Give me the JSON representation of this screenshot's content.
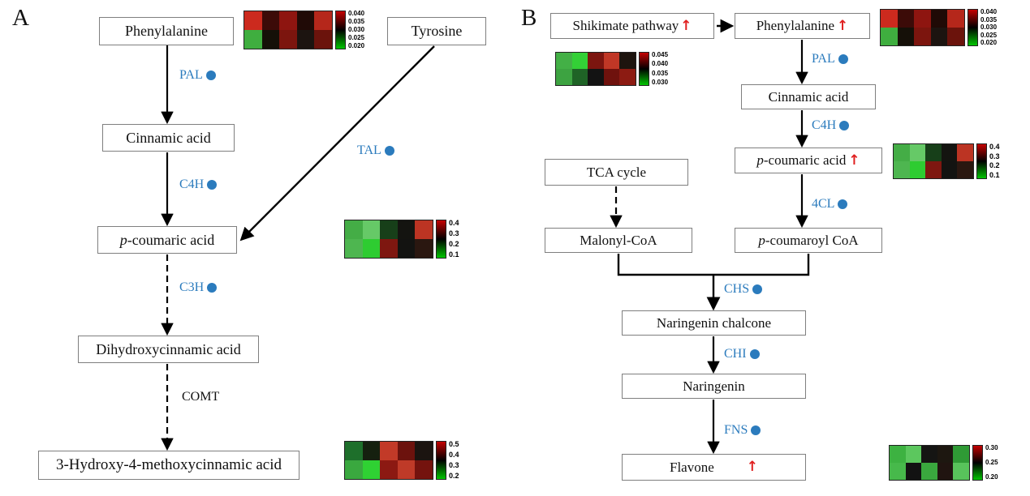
{
  "glyphs": {
    "up_arrow": "↑"
  },
  "colors": {
    "enzyme_blue": "#2b7bbd",
    "up_red": "#e01f1f",
    "heat_red": "#c40000",
    "heat_green": "#00c400"
  },
  "panelA": {
    "label": "A",
    "nodes": {
      "phenylalanine": "Phenylalanine",
      "tyrosine": "Tyrosine",
      "cinnamic_acid": "Cinnamic acid",
      "p_coumaric_italic": "p",
      "p_coumaric_rest": "-coumaric acid",
      "dihydroxycinnamic_acid": "Dihydroxycinnamic acid",
      "hydroxy_methoxycinnamic_acid": "3-Hydroxy-4-methoxycinnamic acid"
    },
    "enzymes": {
      "pal": "PAL",
      "c4h": "C4H",
      "tal": "TAL",
      "c3h": "C3H",
      "comt": "COMT"
    }
  },
  "panelB": {
    "label": "B",
    "nodes": {
      "shikimate_pathway": "Shikimate pathway",
      "phenylalanine": "Phenylalanine",
      "cinnamic_acid": "Cinnamic acid",
      "p_coumaric_italic": "p",
      "p_coumaric_rest": "-coumaric acid",
      "tca_cycle": "TCA cycle",
      "malonyl_coa": "Malonyl-CoA",
      "p_coumaroyl_italic": "p",
      "p_coumaroyl_rest": "-coumaroyl CoA",
      "naringenin_chalcone": "Naringenin chalcone",
      "naringenin": "Naringenin",
      "flavone": "Flavone"
    },
    "enzymes": {
      "pal": "PAL",
      "c4h": "C4H",
      "fourcl": "4CL",
      "chs": "CHS",
      "chi": "CHI",
      "fns": "FNS"
    }
  },
  "heatmaps": {
    "A_phenylalanine": {
      "type": "heatmap",
      "rows": 2,
      "cols": 5,
      "cells": [
        [
          "#cc2a1e",
          "#3c0b08",
          "#8e1510",
          "#200a06",
          "#b5271b"
        ],
        [
          "#3fae3f",
          "#151008",
          "#7c150e",
          "#1c1410",
          "#6b130c"
        ]
      ],
      "scale_labels": [
        "0.040",
        "0.035",
        "0.030",
        "0.025",
        "0.020"
      ],
      "colorbar": [
        "#c40000",
        "#000000",
        "#00c400"
      ]
    },
    "A_pcoumaric": {
      "type": "heatmap",
      "rows": 2,
      "cols": 5,
      "cells": [
        [
          "#44ad46",
          "#66c967",
          "#173f19",
          "#141410",
          "#bc3423"
        ],
        [
          "#4eb650",
          "#2ecc31",
          "#7e1710",
          "#131311",
          "#2a1710"
        ]
      ],
      "scale_labels": [
        "0.4",
        "0.3",
        "0.2",
        "0.1"
      ],
      "colorbar": [
        "#c40000",
        "#000000",
        "#00c400"
      ]
    },
    "A_hydroxymethoxy": {
      "type": "heatmap",
      "rows": 2,
      "cols": 5,
      "cells": [
        [
          "#1e6f2b",
          "#15200f",
          "#c23a28",
          "#6c120d",
          "#1b1410"
        ],
        [
          "#3aa83f",
          "#2fd133",
          "#8c1912",
          "#bf3a28",
          "#74130e"
        ]
      ],
      "scale_labels": [
        "0.5",
        "0.4",
        "0.3",
        "0.2"
      ],
      "colorbar": [
        "#c40000",
        "#000000",
        "#00c400"
      ]
    },
    "B_shikimate": {
      "type": "heatmap",
      "rows": 2,
      "cols": 5,
      "cells": [
        [
          "#43b046",
          "#33d036",
          "#7c150f",
          "#c03726",
          "#1d140e"
        ],
        [
          "#3da341",
          "#1f6326",
          "#131313",
          "#6f120d",
          "#8c1b12"
        ]
      ],
      "scale_labels": [
        "0.045",
        "0.040",
        "0.035",
        "0.030"
      ],
      "colorbar": [
        "#c40000",
        "#000000",
        "#00c400"
      ]
    },
    "B_phenylalanine": {
      "type": "heatmap",
      "rows": 2,
      "cols": 5,
      "cells": [
        [
          "#cc2a1e",
          "#3c0b08",
          "#8e1510",
          "#200a06",
          "#b5271b"
        ],
        [
          "#3fae3f",
          "#151008",
          "#7c150e",
          "#1c1410",
          "#6b130c"
        ]
      ],
      "scale_labels": [
        "0.040",
        "0.035",
        "0.030",
        "0.025",
        "0.020"
      ],
      "colorbar": [
        "#c40000",
        "#000000",
        "#00c400"
      ]
    },
    "B_pcoumaric": {
      "type": "heatmap",
      "rows": 2,
      "cols": 5,
      "cells": [
        [
          "#44ad46",
          "#66c967",
          "#173f19",
          "#141410",
          "#bc3423"
        ],
        [
          "#4eb650",
          "#2ecc31",
          "#7e1710",
          "#131311",
          "#2a1710"
        ]
      ],
      "scale_labels": [
        "0.4",
        "0.3",
        "0.2",
        "0.1"
      ],
      "colorbar": [
        "#c40000",
        "#000000",
        "#00c400"
      ]
    },
    "B_flavone": {
      "type": "heatmap",
      "rows": 2,
      "cols": 5,
      "cells": [
        [
          "#3db241",
          "#5cc75e",
          "#151513",
          "#1d1710",
          "#2f9a35"
        ],
        [
          "#47b94b",
          "#121212",
          "#3aa83e",
          "#201410",
          "#58c35b"
        ]
      ],
      "scale_labels": [
        "0.30",
        "0.25",
        "0.20"
      ],
      "colorbar": [
        "#c40000",
        "#000000",
        "#00c400"
      ]
    }
  }
}
